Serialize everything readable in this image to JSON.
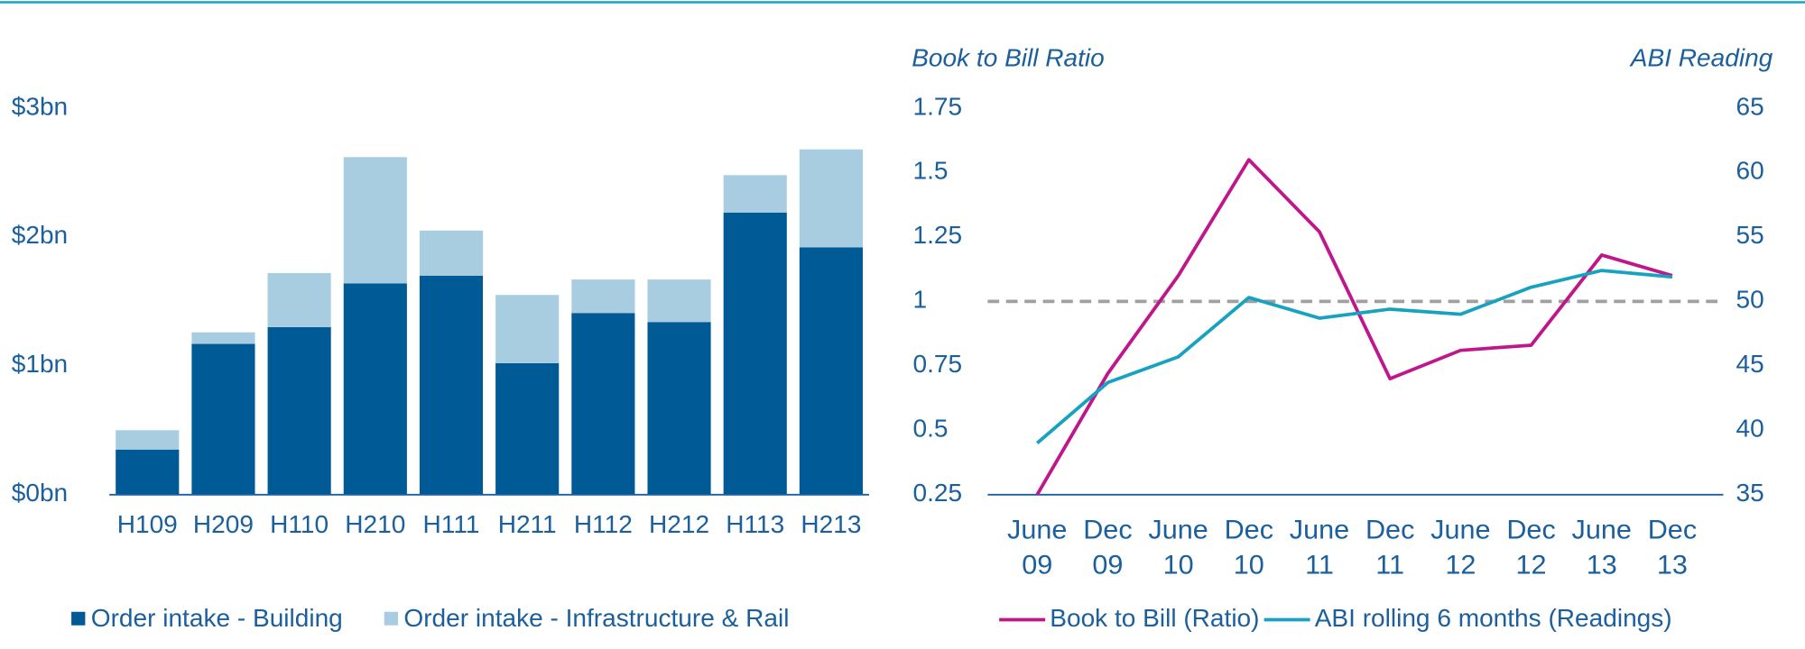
{
  "chart_data": [
    {
      "type": "stacked-bar",
      "categories": [
        "H109",
        "H209",
        "H110",
        "H210",
        "H111",
        "H211",
        "H112",
        "H212",
        "H113",
        "H213"
      ],
      "series": [
        {
          "name": "Order intake - Building",
          "color": "#005a96",
          "values": [
            0.35,
            1.17,
            1.3,
            1.64,
            1.7,
            1.02,
            1.41,
            1.34,
            2.19,
            1.92
          ]
        },
        {
          "name": "Order intake - Infrastructure & Rail",
          "color": "#a9cde0",
          "values": [
            0.15,
            0.09,
            0.42,
            0.98,
            0.35,
            0.53,
            0.26,
            0.33,
            0.29,
            0.76
          ]
        }
      ],
      "ylim": [
        0,
        3
      ],
      "yticks": [
        {
          "value": 0,
          "label": "$0bn"
        },
        {
          "value": 1,
          "label": "$1bn"
        },
        {
          "value": 2,
          "label": "$2bn"
        },
        {
          "value": 3,
          "label": "$3bn"
        }
      ]
    },
    {
      "type": "line",
      "y_label": "Book to Bill Ratio",
      "y2_label": "ABI Reading",
      "categories": [
        "June 09",
        "Dec 09",
        "June 10",
        "Dec 10",
        "June 11",
        "Dec 11",
        "June 12",
        "Dec 12",
        "June 13",
        "Dec 13"
      ],
      "series": [
        {
          "name": "Book to Bill (Ratio)",
          "color": "#c0168c",
          "values": [
            0.25,
            0.72,
            1.1,
            1.55,
            1.27,
            0.7,
            0.81,
            0.83,
            1.18,
            1.1
          ]
        },
        {
          "name": "ABI rolling 6 months (Readings)",
          "color": "#17a2c0",
          "axis": "y2",
          "values": [
            39.0,
            43.7,
            45.7,
            50.3,
            48.7,
            49.4,
            49.0,
            51.1,
            52.4,
            51.9
          ]
        }
      ],
      "reference_line": 1,
      "ylim": [
        0.25,
        1.75
      ],
      "yticks": [
        0.25,
        0.5,
        0.75,
        1,
        1.25,
        1.5,
        1.75
      ],
      "y2lim": [
        35,
        65
      ],
      "y2ticks": [
        35,
        40,
        45,
        50,
        55,
        60,
        65
      ]
    }
  ]
}
